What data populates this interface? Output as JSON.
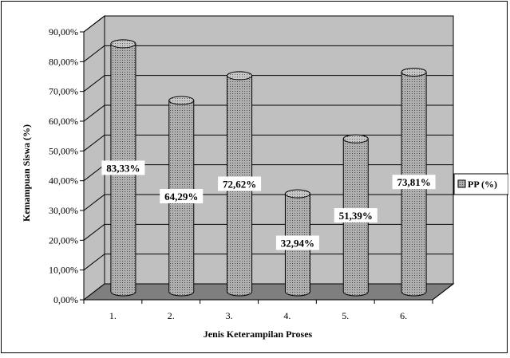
{
  "chart_data": {
    "type": "bar",
    "categories": [
      "1.",
      "2.",
      "3.",
      "4.",
      "5.",
      "6."
    ],
    "series": [
      {
        "name": "PP (%)",
        "values": [
          83.33,
          64.29,
          72.62,
          32.94,
          51.39,
          73.81
        ],
        "labels": [
          "83,33%",
          "64,29%",
          "72,62%",
          "32,94%",
          "51,39%",
          "73,81%"
        ]
      }
    ],
    "y_ticks": [
      "0,00%",
      "10,00%",
      "20,00%",
      "30,00%",
      "40,00%",
      "50,00%",
      "60,00%",
      "70,00%",
      "80,00%",
      "90,00%"
    ],
    "ylim": [
      0,
      90
    ],
    "xlabel": "Jenis Keterampilan Proses",
    "ylabel": "Kemampuan Siswa (%)",
    "legend": {
      "label": "PP (%)",
      "position": "right"
    },
    "grid": true,
    "style": "3d-cylinder",
    "colors": {
      "wall": "#c0c0c0",
      "floor": "#7f7f7f",
      "bar": "#a9a9a9",
      "bar_dots": "#555555"
    }
  }
}
